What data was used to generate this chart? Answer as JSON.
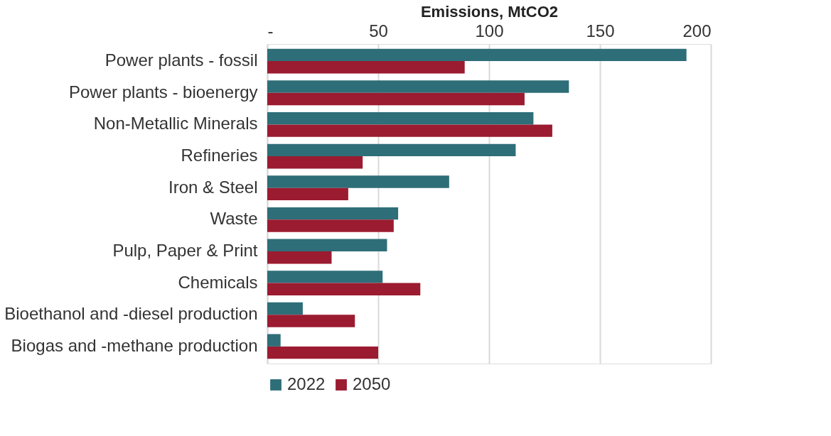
{
  "chart_data": {
    "type": "bar",
    "orientation": "horizontal",
    "xlabel": "Emissions, MtCO2",
    "categories": [
      "Power plants - fossil",
      "Power plants - bioenergy",
      "Non-Metallic Minerals",
      "Refineries",
      "Iron & Steel",
      "Waste",
      "Pulp, Paper & Print",
      "Chemicals",
      "Bioethanol and -diesel production",
      "Biogas and -methane production"
    ],
    "series": [
      {
        "name": "2022",
        "color": "#2e6e78",
        "values": [
          189,
          136,
          120,
          112,
          82,
          59,
          54,
          52,
          16,
          6
        ]
      },
      {
        "name": "2050",
        "color": "#9b1b30",
        "values": [
          89,
          116,
          128.5,
          43,
          36.5,
          57,
          29,
          69,
          39.5,
          50
        ]
      }
    ],
    "xlim": [
      0,
      200
    ],
    "xticks": [
      {
        "value": 0,
        "label": "-"
      },
      50,
      100,
      150,
      200
    ],
    "grid": "x",
    "legend": "bottom"
  }
}
